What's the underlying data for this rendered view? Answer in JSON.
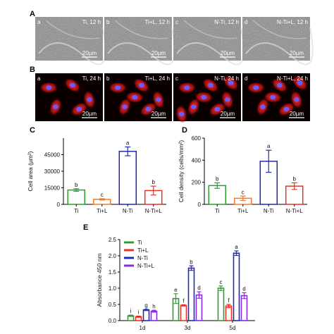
{
  "figure": {
    "panel_letters": [
      "A",
      "B",
      "C",
      "D",
      "E"
    ],
    "row_a": [
      {
        "letter": "a",
        "label": "Ti, 12 h",
        "scale": "20µm"
      },
      {
        "letter": "b",
        "label": "Ti+L, 12 h",
        "scale": "20µm"
      },
      {
        "letter": "c",
        "label": "N-Ti, 12 h",
        "scale": "20µm"
      },
      {
        "letter": "d",
        "label": "N-Ti+L, 12 h",
        "scale": "20µm"
      }
    ],
    "row_b": [
      {
        "letter": "a",
        "label": "Ti, 24 h",
        "scale": "20µm"
      },
      {
        "letter": "b",
        "label": "Ti+L, 24 h",
        "scale": "20µm"
      },
      {
        "letter": "c",
        "label": "N-Ti, 24 h",
        "scale": "20µm"
      },
      {
        "letter": "d",
        "label": "N-Ti+L, 24 h",
        "scale": "20µm"
      }
    ]
  },
  "colors": {
    "Ti": "#2ca02c",
    "Ti+L": "#e8332a",
    "N-Ti": "#1f2ab8",
    "N-Ti+L": "#8a2be2",
    "Ti+L_panelD": "#f07a2a"
  },
  "chart_data": [
    {
      "type": "bar",
      "panel": "C",
      "categories": [
        "Ti",
        "Ti+L",
        "N-Ti",
        "N-Ti+L"
      ],
      "values": [
        13000,
        4500,
        48000,
        12500
      ],
      "errors": [
        1200,
        600,
        4000,
        4000
      ],
      "sig_letters": [
        "b",
        "c",
        "a",
        "b"
      ],
      "colors": [
        "#2ca02c",
        "#f07a2a",
        "#1f2ab8",
        "#e8332a"
      ],
      "ylabel": "Cell area (µm²)",
      "ylim": [
        0,
        60000
      ],
      "yticks": [
        "0",
        "15000",
        "30000",
        "45000"
      ],
      "ytick_values": [
        0,
        15000,
        30000,
        45000
      ]
    },
    {
      "type": "bar",
      "panel": "D",
      "categories": [
        "Ti",
        "Ti+L",
        "N-Ti",
        "N-Ti+L"
      ],
      "values": [
        170,
        55,
        390,
        165
      ],
      "errors": [
        25,
        20,
        100,
        30
      ],
      "sig_letters": [
        "b",
        "c",
        "a",
        "b"
      ],
      "colors": [
        "#2ca02c",
        "#f07a2a",
        "#1f2ab8",
        "#e8332a"
      ],
      "ylabel": "Cell density (cells/mm²)",
      "ylim": [
        0,
        600
      ],
      "yticks": [
        "0",
        "200",
        "400",
        "600"
      ],
      "ytick_values": [
        0,
        200,
        400,
        600
      ]
    },
    {
      "type": "bar",
      "panel": "E",
      "categories": [
        "1d",
        "3d",
        "5d"
      ],
      "series": [
        {
          "name": "Ti",
          "color": "#2ca02c",
          "values": [
            0.15,
            0.68,
            1.0
          ],
          "errors": [
            0.02,
            0.15,
            0.07
          ],
          "sig_letters": [
            "i",
            "e",
            "c"
          ]
        },
        {
          "name": "Ti+L",
          "color": "#e8332a",
          "values": [
            0.12,
            0.47,
            0.45
          ],
          "errors": [
            0.02,
            0.02,
            0.05
          ],
          "sig_letters": [
            "i",
            "f",
            "f"
          ]
        },
        {
          "name": "N-Ti",
          "color": "#1f2ab8",
          "values": [
            0.33,
            1.62,
            2.08
          ],
          "errors": [
            0.02,
            0.07,
            0.07
          ],
          "sig_letters": [
            "g",
            "b",
            "a"
          ]
        },
        {
          "name": "N-Ti+L",
          "color": "#8a2be2",
          "values": [
            0.29,
            0.79,
            0.77
          ],
          "errors": [
            0.03,
            0.1,
            0.09
          ],
          "sig_letters": [
            "h",
            "d",
            "d"
          ]
        }
      ],
      "ylabel": "Absorbance 450 nm",
      "ylim": [
        0,
        2.5
      ],
      "yticks": [
        "0.0",
        "0.5",
        "1.0",
        "1.5",
        "2.0",
        "2.5"
      ],
      "ytick_values": [
        0,
        0.5,
        1.0,
        1.5,
        2.0,
        2.5
      ],
      "legend_position": "top-left"
    }
  ]
}
